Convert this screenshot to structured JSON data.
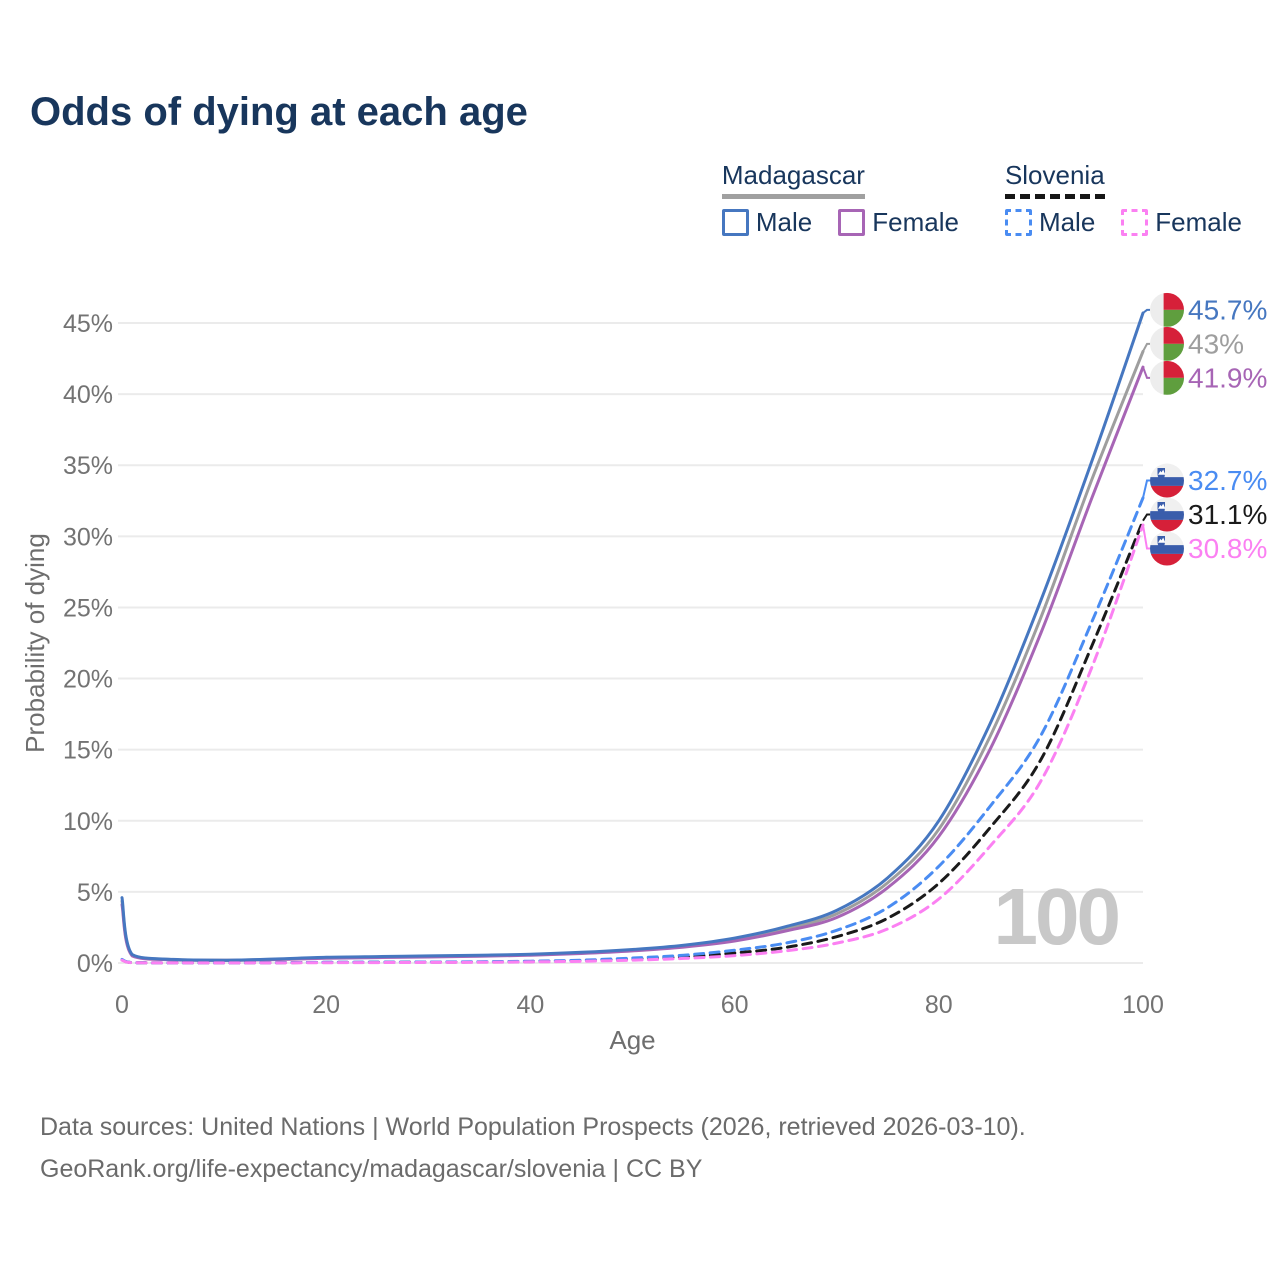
{
  "header": {
    "title": "Odds of dying at each age"
  },
  "legend": {
    "groups": [
      {
        "name": "Madagascar",
        "line_style": "solid",
        "underline_color": "#a0a0a0",
        "items": [
          {
            "label": "Male",
            "color": "#4677c0",
            "dashed": false
          },
          {
            "label": "Female",
            "color": "#a765b5",
            "dashed": false
          }
        ]
      },
      {
        "name": "Slovenia",
        "line_style": "dashed",
        "underline_color": "#161616",
        "items": [
          {
            "label": "Male",
            "color": "#4a8cf2",
            "dashed": true
          },
          {
            "label": "Female",
            "color": "#fb80f2",
            "dashed": true
          }
        ]
      }
    ]
  },
  "chart_data": {
    "type": "line",
    "title": "Odds of dying at each age",
    "xlabel": "Age",
    "ylabel": "Probability of dying",
    "xlim": [
      0,
      100
    ],
    "ylim_pct": [
      0,
      46
    ],
    "grid": true,
    "legend_position": "top-right",
    "x_tick_labels": [
      "0",
      "20",
      "40",
      "60",
      "80",
      "100"
    ],
    "x_tick_values": [
      0,
      20,
      40,
      60,
      80,
      100
    ],
    "y_tick_labels": [
      "0%",
      "5%",
      "10%",
      "15%",
      "20%",
      "25%",
      "30%",
      "35%",
      "40%",
      "45%"
    ],
    "y_tick_values": [
      0,
      5,
      10,
      15,
      20,
      25,
      30,
      35,
      40,
      45
    ],
    "age_cursor": "100",
    "x": [
      0,
      1,
      5,
      10,
      15,
      20,
      25,
      30,
      35,
      40,
      45,
      50,
      55,
      60,
      65,
      70,
      75,
      80,
      85,
      90,
      95,
      100
    ],
    "series": [
      {
        "id": "madagascar-combined",
        "name": "Madagascar",
        "country": "Madagascar",
        "color": "#9e9e9e",
        "dashed": false,
        "end_label": "43%",
        "values": [
          4.35,
          0.55,
          0.24,
          0.19,
          0.26,
          0.37,
          0.42,
          0.46,
          0.51,
          0.58,
          0.71,
          0.9,
          1.18,
          1.65,
          2.4,
          3.45,
          5.65,
          9.4,
          15.9,
          24.3,
          34.0,
          43.0
        ]
      },
      {
        "id": "madagascar-female",
        "name": "Madagascar Female",
        "country": "Madagascar",
        "color": "#a765b5",
        "dashed": false,
        "end_label": "41.9%",
        "values": [
          4.1,
          0.5,
          0.22,
          0.18,
          0.24,
          0.33,
          0.38,
          0.42,
          0.47,
          0.55,
          0.67,
          0.85,
          1.12,
          1.55,
          2.25,
          3.2,
          5.3,
          8.9,
          15.0,
          23.2,
          32.7,
          41.9
        ]
      },
      {
        "id": "madagascar-male",
        "name": "Madagascar Male",
        "country": "Madagascar",
        "color": "#4677c0",
        "dashed": false,
        "end_label": "45.7%",
        "values": [
          4.6,
          0.6,
          0.25,
          0.2,
          0.28,
          0.4,
          0.45,
          0.5,
          0.55,
          0.62,
          0.75,
          0.95,
          1.25,
          1.75,
          2.55,
          3.7,
          6.0,
          10.0,
          16.8,
          25.5,
          35.3,
          45.7
        ]
      },
      {
        "id": "slovenia-combined",
        "name": "Slovenia",
        "country": "Slovenia",
        "color": "#1a1a1a",
        "dashed": true,
        "end_label": "31.1%",
        "values": [
          0.22,
          0.03,
          0.01,
          0.01,
          0.02,
          0.04,
          0.05,
          0.06,
          0.07,
          0.1,
          0.16,
          0.27,
          0.43,
          0.7,
          1.1,
          1.85,
          3.15,
          5.6,
          9.5,
          14.3,
          22.3,
          31.1
        ]
      },
      {
        "id": "slovenia-male",
        "name": "Slovenia Male",
        "country": "Slovenia",
        "color": "#4a8cf2",
        "dashed": true,
        "end_label": "32.7%",
        "values": [
          0.25,
          0.03,
          0.01,
          0.01,
          0.02,
          0.05,
          0.06,
          0.07,
          0.09,
          0.13,
          0.2,
          0.35,
          0.55,
          0.9,
          1.4,
          2.3,
          3.9,
          6.8,
          11.0,
          16.0,
          24.0,
          32.7
        ]
      },
      {
        "id": "slovenia-female",
        "name": "Slovenia Female",
        "country": "Slovenia",
        "color": "#fb80f2",
        "dashed": true,
        "end_label": "30.8%",
        "values": [
          0.2,
          0.02,
          0.01,
          0.01,
          0.01,
          0.02,
          0.03,
          0.04,
          0.05,
          0.08,
          0.12,
          0.2,
          0.32,
          0.52,
          0.85,
          1.4,
          2.4,
          4.5,
          8.2,
          12.8,
          20.8,
          30.8
        ]
      }
    ],
    "flags": {
      "Madagascar": {
        "white": "#ededed",
        "red": "#d62039",
        "green": "#5f9e3e"
      },
      "Slovenia": {
        "white": "#f0f0f0",
        "blue": "#3a5dab",
        "red": "#d62039",
        "shield_blue": "#3a5dab"
      }
    }
  },
  "colors": {
    "title_text": "#18365c",
    "axis_text": "#737373",
    "axis_title_text": "#6e6e6e",
    "grid": "#ebebeb",
    "watermark": "#c8c8c8",
    "footer_text": "#6b6b6b"
  },
  "footer": {
    "line1": "Data sources: United Nations | World Population Prospects (2026, retrieved 2026-03-10).",
    "line2": "GeoRank.org/life-expectancy/madagascar/slovenia | CC BY"
  }
}
